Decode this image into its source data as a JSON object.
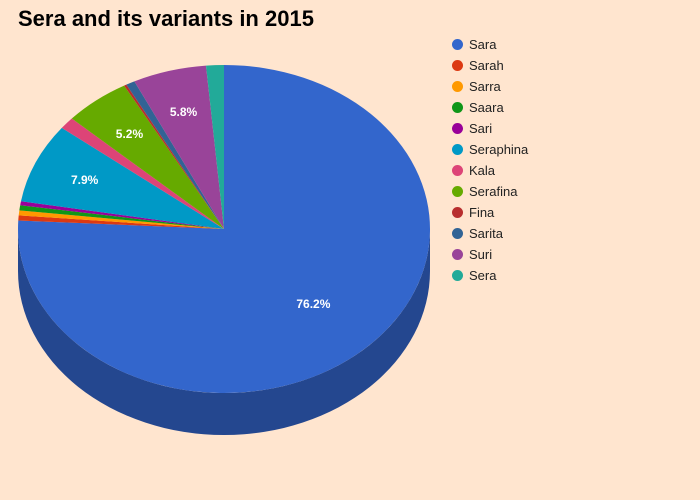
{
  "chart_data": {
    "type": "pie",
    "title": "Sera and its variants in 2015",
    "style": "3d",
    "legend_position": "right",
    "slices": [
      {
        "name": "Sara",
        "value": 76.2,
        "color": "#3366cc",
        "label": "76.2%"
      },
      {
        "name": "Sarah",
        "value": 0.5,
        "color": "#dc3912"
      },
      {
        "name": "Sarra",
        "value": 0.5,
        "color": "#ff9900"
      },
      {
        "name": "Saara",
        "value": 0.5,
        "color": "#109618"
      },
      {
        "name": "Sari",
        "value": 0.4,
        "color": "#990099"
      },
      {
        "name": "Seraphina",
        "value": 7.9,
        "color": "#0099c6",
        "label": "7.9%"
      },
      {
        "name": "Kala",
        "value": 1.2,
        "color": "#dd4477"
      },
      {
        "name": "Serafina",
        "value": 5.2,
        "color": "#66aa00",
        "label": "5.2%"
      },
      {
        "name": "Fina",
        "value": 0.2,
        "color": "#b82e2e"
      },
      {
        "name": "Sarita",
        "value": 0.7,
        "color": "#316395"
      },
      {
        "name": "Suri",
        "value": 5.8,
        "color": "#994499",
        "label": "5.8%"
      },
      {
        "name": "Sera",
        "value": 1.4,
        "color": "#22aa99"
      }
    ]
  }
}
